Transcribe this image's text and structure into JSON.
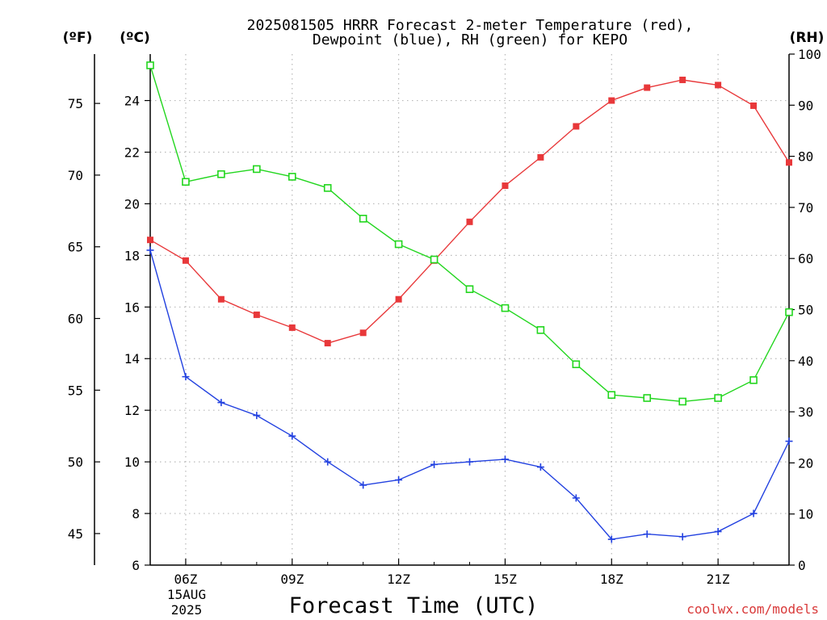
{
  "chart_data": {
    "type": "line",
    "title": "2025081505 HRRR Forecast 2-meter Temperature (red),",
    "subtitle": "Dewpoint (blue), RH (green) for KEPO",
    "xlabel": "Forecast Time (UTC)",
    "x": [
      5,
      6,
      7,
      8,
      9,
      10,
      11,
      12,
      13,
      14,
      15,
      16,
      17,
      18,
      19,
      20,
      21,
      22,
      23
    ],
    "xlim": [
      5,
      23
    ],
    "x_ticks": [
      6,
      9,
      12,
      15,
      18,
      21
    ],
    "x_tick_labels": [
      "06Z",
      "09Z",
      "12Z",
      "15Z",
      "18Z",
      "21Z"
    ],
    "date_label_lines": [
      "15AUG",
      "2025"
    ],
    "left_axis_f": {
      "unit_label": "(ºF)",
      "ticks": [
        45,
        50,
        55,
        60,
        65,
        70,
        75
      ]
    },
    "left_axis_c": {
      "unit_label": "(ºC)",
      "ylim": [
        6,
        25.8
      ],
      "ticks": [
        6,
        8,
        10,
        12,
        14,
        16,
        18,
        20,
        22,
        24
      ]
    },
    "right_axis_rh": {
      "unit_label": "(RH)",
      "ylim": [
        0,
        100
      ],
      "ticks": [
        0,
        10,
        20,
        30,
        40,
        50,
        60,
        70,
        80,
        90,
        100
      ]
    },
    "grid": true,
    "series": [
      {
        "color": "#e8383a",
        "marker": "filled-square",
        "axis": "c",
        "values": [
          18.6,
          17.8,
          16.3,
          15.7,
          15.2,
          14.6,
          15.0,
          16.3,
          17.8,
          19.3,
          20.7,
          21.8,
          23.0,
          24.0,
          24.5,
          24.8,
          24.6,
          23.8,
          21.6
        ]
      },
      {
        "color": "#2241e0",
        "marker": "plus",
        "axis": "c",
        "values": [
          18.2,
          13.3,
          12.3,
          11.8,
          11.0,
          10.0,
          9.1,
          9.3,
          9.9,
          10.0,
          10.1,
          9.8,
          8.6,
          7.0,
          7.2,
          7.1,
          7.3,
          8.0,
          10.8
        ]
      },
      {
        "color": "#22d61e",
        "marker": "open-square",
        "axis": "rh",
        "values": [
          97.8,
          75.0,
          76.5,
          77.5,
          76.0,
          73.8,
          67.8,
          62.8,
          59.8,
          54.0,
          50.3,
          46.0,
          39.3,
          33.3,
          32.7,
          32.0,
          32.7,
          36.2,
          49.5
        ]
      }
    ]
  },
  "credit": "coolwx.com/models"
}
